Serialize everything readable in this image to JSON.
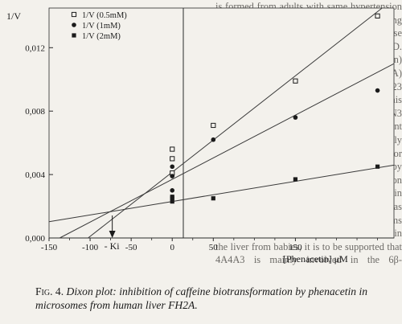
{
  "background_text": "is formed from adults with same hypertension in metabolism and others appearing during development. This result suggests that these two enzymes are being expressed by 4-ASD. 3A4(pHL) fully operated in human-de-. 3A(n) from P450AAE induced for laboratories (4A) are be correlated with in the Br023 microsomal sample. Similarities of this recovery with those very 1A CRO2 and 4AN3 activities. All information was in agreement with recent finding demonstrating that only 1A4H2 was detected only several weeks or months after birth (observed by immunochemical and immunoprecipitation techniques in microsomal samples involved in N- and dealkylation). In earlier studies was unknown, yet. However, since these isoforms are commonly accepted the MM enzymes in the liver from babies, it is to be supported that 4A4A3 is mainly involved in the 6β-hydroxylation of cortisol in fetal liver because D4/1AA is likely. 4A4A3 is mainly found by the P-450 that 3A4(pHL) in this exhibit a content determination of cytochrome 1B20 in the microsome. The absence of caffeine during the fetal period has been",
  "chart_data": {
    "type": "scatter",
    "title": "",
    "xlabel": "[Phenacetin] μM",
    "ylabel": "1/V",
    "xlim": [
      -150,
      270
    ],
    "ylim": [
      0,
      0.0145
    ],
    "x_ticks": [
      "-150",
      "-100",
      "-50",
      "0",
      "50",
      "150"
    ],
    "x_tick_values": [
      -150,
      -100,
      -50,
      0,
      50,
      150
    ],
    "y_ticks": [
      "0,000",
      "0,004",
      "0,008",
      "0,012"
    ],
    "y_tick_values": [
      0.0,
      0.004,
      0.008,
      0.012
    ],
    "legend_position": "top-center",
    "ki_label": "- Ki",
    "ki_value": -73,
    "series": [
      {
        "name": "1/V (0.5mM)",
        "marker": "square-open",
        "x": [
          0,
          0,
          0,
          50,
          150,
          250
        ],
        "y": [
          0.0041,
          0.005,
          0.0056,
          0.0071,
          0.0099,
          0.014
        ],
        "line": {
          "slope": 4.05e-05,
          "intercept": 0.00415
        }
      },
      {
        "name": "1/V (1mM)",
        "marker": "circle-filled",
        "x": [
          0,
          0,
          0,
          50,
          150,
          250
        ],
        "y": [
          0.003,
          0.0039,
          0.0045,
          0.0062,
          0.0076,
          0.0093
        ],
        "line": {
          "slope": 2.7e-05,
          "intercept": 0.0037
        }
      },
      {
        "name": "1/V (2mM)",
        "marker": "square-filled",
        "x": [
          0,
          0,
          0,
          50,
          150,
          250
        ],
        "y": [
          0.0023,
          0.0025,
          0.0026,
          0.0025,
          0.0037,
          0.0045
        ],
        "line": {
          "slope": 8.5e-06,
          "intercept": 0.0023
        }
      }
    ]
  },
  "caption": {
    "figure_label": "Fig. 4.",
    "text": "Dixon plot: inhibition of caffeine biotransformation by phenacetin in microsomes from human liver FH2A."
  }
}
